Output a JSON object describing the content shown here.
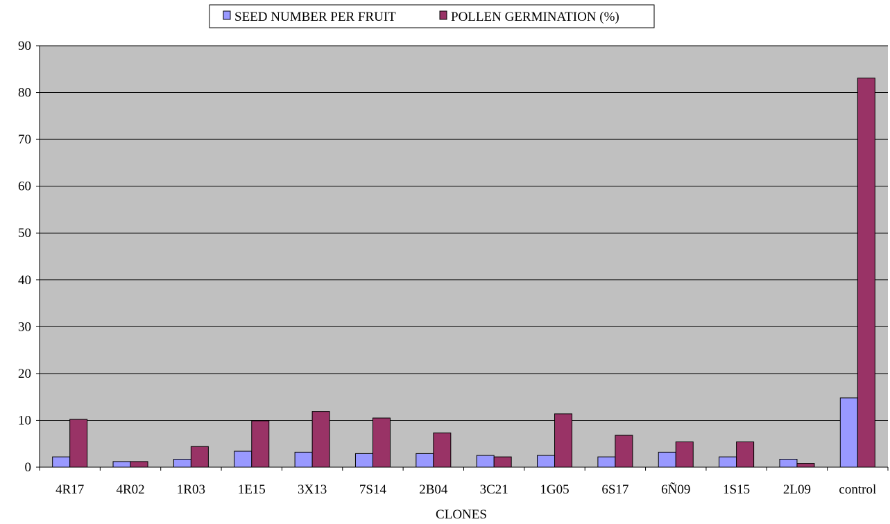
{
  "chart_data": {
    "type": "bar",
    "title": "",
    "xlabel": "CLONES",
    "ylabel": "",
    "ylim": [
      0,
      90
    ],
    "yticks": [
      0,
      10,
      20,
      30,
      40,
      50,
      60,
      70,
      80,
      90
    ],
    "grid": true,
    "legend_position": "top-center",
    "categories": [
      "4R17",
      "4R02",
      "1R03",
      "1E15",
      "3X13",
      "7S14",
      "2B04",
      "3C21",
      "1G05",
      "6S17",
      "6Ñ09",
      "1S15",
      "2L09",
      "control"
    ],
    "series": [
      {
        "name": "SEED NUMBER PER FRUIT",
        "color": "#9999ff",
        "values": [
          2.2,
          1.2,
          1.7,
          3.4,
          3.2,
          2.9,
          2.9,
          2.5,
          2.5,
          2.2,
          3.2,
          2.2,
          1.7,
          14.8
        ]
      },
      {
        "name": "POLLEN GERMINATION (%)",
        "color": "#993366",
        "values": [
          10.2,
          1.2,
          4.4,
          9.9,
          11.9,
          10.5,
          7.3,
          2.2,
          11.4,
          6.8,
          5.4,
          5.4,
          0.8,
          83.1
        ]
      }
    ],
    "plot_background": "#c0c0c0"
  }
}
